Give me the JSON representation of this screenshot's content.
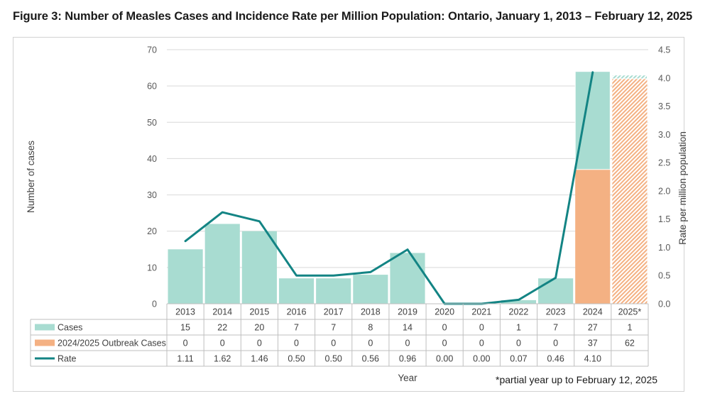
{
  "figure": {
    "title": "Figure 3: Number of Measles Cases and Incidence Rate per Million Population: Ontario, January 1, 2013 – February 12, 2025",
    "footnote": "*partial year up to February 12, 2025"
  },
  "chart_data": {
    "type": "bar",
    "stacked": true,
    "categories": [
      "2013",
      "2014",
      "2015",
      "2016",
      "2017",
      "2018",
      "2019",
      "2020",
      "2021",
      "2022",
      "2023",
      "2024",
      "2025*"
    ],
    "series": [
      {
        "name": "Cases",
        "kind": "bar",
        "axis": "left",
        "color": "#a8dcd1",
        "values": [
          15,
          22,
          20,
          7,
          7,
          8,
          14,
          0,
          0,
          1,
          7,
          27,
          1
        ],
        "value_labels": [
          "15",
          "22",
          "20",
          "7",
          "7",
          "8",
          "14",
          "0",
          "0",
          "1",
          "7",
          "27",
          "1"
        ]
      },
      {
        "name": "2024/2025 Outbreak Cases",
        "kind": "bar",
        "axis": "left",
        "color": "#f4b183",
        "values": [
          0,
          0,
          0,
          0,
          0,
          0,
          0,
          0,
          0,
          0,
          0,
          37,
          62
        ],
        "value_labels": [
          "0",
          "0",
          "0",
          "0",
          "0",
          "0",
          "0",
          "0",
          "0",
          "0",
          "0",
          "37",
          "62"
        ]
      },
      {
        "name": "Rate",
        "kind": "line",
        "axis": "right",
        "color": "#138484",
        "values": [
          1.11,
          1.62,
          1.46,
          0.5,
          0.5,
          0.56,
          0.96,
          0.0,
          0.0,
          0.07,
          0.46,
          4.1,
          null
        ],
        "value_labels": [
          "1.11",
          "1.62",
          "1.46",
          "0.50",
          "0.50",
          "0.56",
          "0.96",
          "0.00",
          "0.00",
          "0.07",
          "0.46",
          "4.10",
          ""
        ]
      }
    ],
    "hatched_categories": [
      "2025*"
    ],
    "y_left": {
      "label": "Number of cases",
      "range": [
        0,
        70
      ],
      "ticks": [
        "0",
        "10",
        "20",
        "30",
        "40",
        "50",
        "60",
        "70"
      ]
    },
    "y_right": {
      "label": "Rate per million population",
      "range": [
        0,
        4.5
      ],
      "ticks": [
        "0.0",
        "0.5",
        "1.0",
        "1.5",
        "2.0",
        "2.5",
        "3.0",
        "3.5",
        "4.0",
        "4.5"
      ]
    },
    "xlabel": "Year",
    "grid": true,
    "legend": "data-table"
  }
}
